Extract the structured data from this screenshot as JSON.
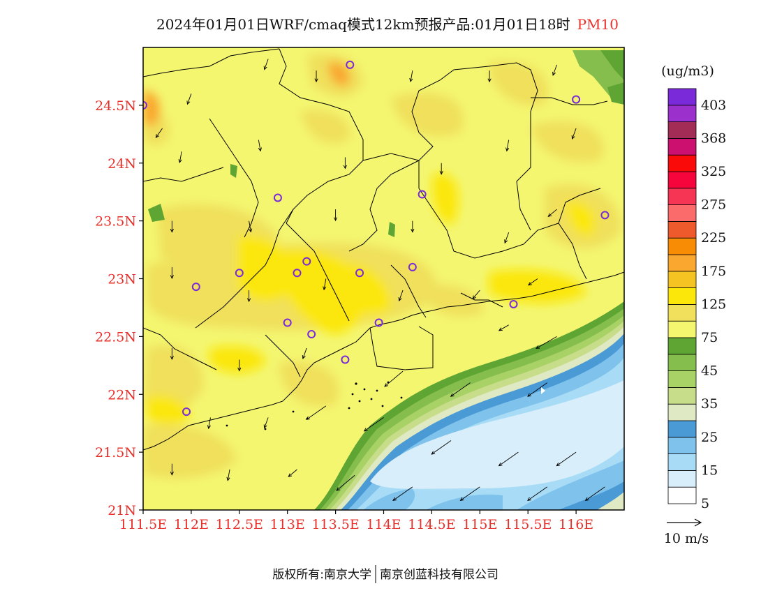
{
  "header": {
    "title": "2024年01月01日WRF/cmaq模式12km预报产品:01月01日18时",
    "variable": "PM10"
  },
  "axes": {
    "lat_ticks": [
      "24.5N",
      "24N",
      "23.5N",
      "23N",
      "22.5N",
      "22N",
      "21.5N",
      "21N"
    ],
    "lon_ticks": [
      "111.5E",
      "112E",
      "112.5E",
      "113E",
      "113.5E",
      "114E",
      "114.5E",
      "115E",
      "115.5E",
      "116E"
    ]
  },
  "colorbar": {
    "unit": "(ug/m3)",
    "labels": [
      "403",
      "368",
      "325",
      "275",
      "225",
      "175",
      "125",
      "75",
      "45",
      "35",
      "25",
      "15",
      "5"
    ],
    "colors": [
      "#ffffff",
      "#d9eefb",
      "#a8dcf6",
      "#7fc3ec",
      "#4a9ad6",
      "#dfe9c4",
      "#c8dd8a",
      "#a8d266",
      "#86be4d",
      "#5ea533",
      "#f4f670",
      "#f0e05c",
      "#fbe70a",
      "#f5c422",
      "#f9a72e",
      "#f88c05",
      "#ee5a2b",
      "#fb6b6b",
      "#f63555",
      "#f6053c",
      "#fb0a0a",
      "#cc1070",
      "#a32c56",
      "#9c30cc",
      "#7a2ad8"
    ]
  },
  "wind_legend": {
    "label": "10 m/s"
  },
  "footer": {
    "left": "版权所有:南京大学",
    "right": "南京创蓝科技有限公司"
  },
  "map": {
    "stations": [
      [
        113.65,
        24.85
      ],
      [
        111.5,
        24.5
      ],
      [
        116.0,
        24.55
      ],
      [
        112.9,
        23.7
      ],
      [
        114.4,
        23.73
      ],
      [
        116.3,
        23.55
      ],
      [
        113.2,
        23.15
      ],
      [
        113.1,
        23.05
      ],
      [
        112.5,
        23.05
      ],
      [
        112.05,
        22.93
      ],
      [
        113.75,
        23.05
      ],
      [
        114.3,
        23.1
      ],
      [
        115.35,
        22.78
      ],
      [
        113.0,
        22.62
      ],
      [
        113.25,
        22.52
      ],
      [
        113.95,
        22.62
      ],
      [
        113.6,
        22.3
      ],
      [
        111.95,
        21.85
      ]
    ],
    "wind": [
      [
        111.7,
        24.3,
        215
      ],
      [
        112.0,
        24.6,
        200
      ],
      [
        112.8,
        24.9,
        200
      ],
      [
        113.3,
        24.8,
        180
      ],
      [
        114.3,
        24.8,
        190
      ],
      [
        115.1,
        24.8,
        180
      ],
      [
        115.8,
        24.85,
        200
      ],
      [
        111.9,
        24.1,
        190
      ],
      [
        112.7,
        24.2,
        170
      ],
      [
        113.6,
        24.05,
        180
      ],
      [
        114.6,
        24.0,
        180
      ],
      [
        115.3,
        24.2,
        190
      ],
      [
        116.0,
        24.3,
        200
      ],
      [
        111.8,
        23.5,
        180
      ],
      [
        112.6,
        23.5,
        170
      ],
      [
        113.5,
        23.6,
        180
      ],
      [
        114.3,
        23.5,
        180
      ],
      [
        115.3,
        23.4,
        200
      ],
      [
        115.8,
        23.6,
        230
      ],
      [
        111.8,
        23.1,
        180
      ],
      [
        112.6,
        22.9,
        180
      ],
      [
        113.4,
        23.0,
        190
      ],
      [
        114.2,
        22.9,
        200
      ],
      [
        115.0,
        22.9,
        220
      ],
      [
        115.6,
        23.0,
        235
      ],
      [
        115.3,
        22.6,
        240
      ],
      [
        115.8,
        22.5,
        240
      ],
      [
        111.8,
        22.4,
        180
      ],
      [
        112.5,
        22.3,
        180
      ],
      [
        113.2,
        22.4,
        200
      ],
      [
        114.2,
        22.2,
        230
      ],
      [
        114.9,
        22.1,
        235
      ],
      [
        115.7,
        22.1,
        235
      ],
      [
        112.2,
        21.8,
        190
      ],
      [
        112.8,
        21.8,
        200
      ],
      [
        113.4,
        21.9,
        235
      ],
      [
        114.0,
        21.8,
        235
      ],
      [
        114.7,
        21.6,
        235
      ],
      [
        115.4,
        21.5,
        235
      ],
      [
        116.0,
        21.5,
        235
      ],
      [
        111.8,
        21.4,
        180
      ],
      [
        112.4,
        21.35,
        190
      ],
      [
        113.1,
        21.35,
        230
      ],
      [
        113.7,
        21.3,
        230
      ],
      [
        114.3,
        21.2,
        235
      ],
      [
        115.0,
        21.2,
        235
      ],
      [
        115.7,
        21.2,
        235
      ],
      [
        116.3,
        21.2,
        235
      ]
    ]
  }
}
